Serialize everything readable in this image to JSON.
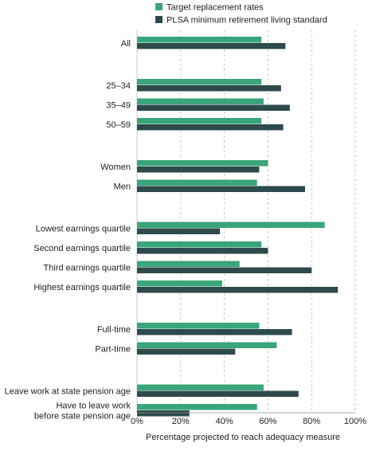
{
  "chart_data": {
    "type": "bar",
    "orientation": "horizontal",
    "title": "",
    "xlabel": "Percentage projected to reach adequacy measure",
    "ylabel": "",
    "xlim": [
      0,
      100
    ],
    "x_ticks": [
      0,
      20,
      40,
      60,
      80,
      100
    ],
    "x_tick_labels": [
      "0%",
      "20%",
      "40%",
      "60%",
      "80%",
      "100%"
    ],
    "grid": "vertical dashed",
    "legend_position": "top",
    "categories": [
      "All",
      "25–34",
      "35–49",
      "50–59",
      "Women",
      "Men",
      "Lowest earnings quartile",
      "Second earnings quartile",
      "Third earnings quartile",
      "Highest earnings quartile",
      "Full-time",
      "Part-time",
      "Leave work at state pension age",
      "Have to leave work before state pension age"
    ],
    "category_label_lines": [
      [
        "All"
      ],
      [
        "25–34"
      ],
      [
        "35–49"
      ],
      [
        "50–59"
      ],
      [
        "Women"
      ],
      [
        "Men"
      ],
      [
        "Lowest earnings quartile"
      ],
      [
        "Second earnings quartile"
      ],
      [
        "Third earnings quartile"
      ],
      [
        "Highest earnings quartile"
      ],
      [
        "Full-time"
      ],
      [
        "Part-time"
      ],
      [
        "Leave work at state pension age"
      ],
      [
        "Have to leave work",
        "before state pension age"
      ]
    ],
    "groups": [
      [
        0
      ],
      [
        1,
        2,
        3
      ],
      [
        4,
        5
      ],
      [
        6,
        7,
        8,
        9
      ],
      [
        10,
        11
      ],
      [
        12,
        13
      ]
    ],
    "series": [
      {
        "name": "Target replacement rates",
        "color": "#3aa57a",
        "values": [
          57,
          57,
          58,
          57,
          60,
          55,
          86,
          57,
          47,
          39,
          56,
          64,
          58,
          55
        ]
      },
      {
        "name": "PLSA minimum retirement living standard",
        "color": "#2d4a4c",
        "values": [
          68,
          66,
          70,
          67,
          56,
          77,
          38,
          60,
          80,
          92,
          71,
          45,
          74,
          24
        ]
      }
    ]
  }
}
